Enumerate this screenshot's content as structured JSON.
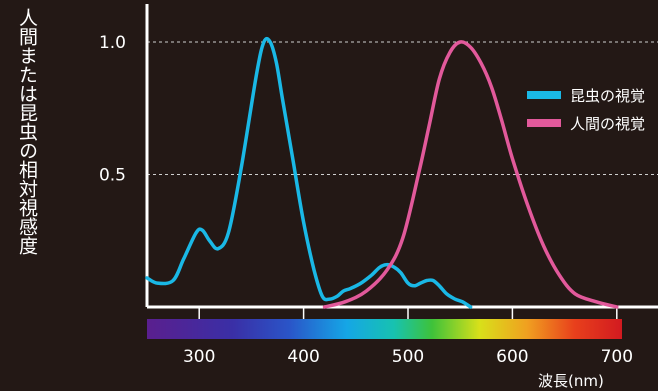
{
  "chart_data": {
    "type": "line",
    "title": "",
    "ylabel": "人間または昆虫の相対視感度",
    "xlabel": "波長(nm)",
    "x_ticks": [
      300,
      400,
      500,
      600,
      700
    ],
    "y_ticks": [
      {
        "value": 0.5,
        "label": "0.5"
      },
      {
        "value": 1.0,
        "label": "1.0"
      }
    ],
    "xlim": [
      250,
      700
    ],
    "ylim": [
      0,
      1.08
    ],
    "grid": "dashed horizontal at 0.5 and 1.0",
    "legend_position": "right",
    "spectrum_bar": true,
    "series": [
      {
        "name": "昆虫の視覚",
        "color": "#1ab8e6",
        "x": [
          250,
          260,
          275,
          285,
          297,
          303,
          310,
          318,
          328,
          340,
          355,
          362,
          368,
          374,
          380,
          390,
          400,
          410,
          418,
          425,
          432,
          438,
          445,
          455,
          465,
          473,
          480,
          487,
          493,
          500,
          506,
          512,
          518,
          524,
          530,
          537,
          545,
          552,
          560
        ],
        "y": [
          0.11,
          0.09,
          0.1,
          0.18,
          0.28,
          0.29,
          0.25,
          0.22,
          0.28,
          0.52,
          0.88,
          1.0,
          1.0,
          0.92,
          0.78,
          0.55,
          0.32,
          0.14,
          0.04,
          0.03,
          0.04,
          0.06,
          0.07,
          0.09,
          0.12,
          0.15,
          0.16,
          0.15,
          0.13,
          0.09,
          0.08,
          0.09,
          0.1,
          0.1,
          0.08,
          0.05,
          0.03,
          0.02,
          0.0
        ]
      },
      {
        "name": "人間の視覚",
        "color": "#e2599b",
        "x": [
          420,
          440,
          460,
          480,
          495,
          510,
          520,
          530,
          540,
          550,
          560,
          570,
          580,
          590,
          600,
          615,
          630,
          645,
          660,
          680,
          700
        ],
        "y": [
          0.0,
          0.02,
          0.06,
          0.14,
          0.26,
          0.5,
          0.68,
          0.86,
          0.96,
          1.0,
          0.98,
          0.92,
          0.83,
          0.7,
          0.56,
          0.38,
          0.23,
          0.12,
          0.05,
          0.02,
          0.0
        ]
      }
    ]
  }
}
